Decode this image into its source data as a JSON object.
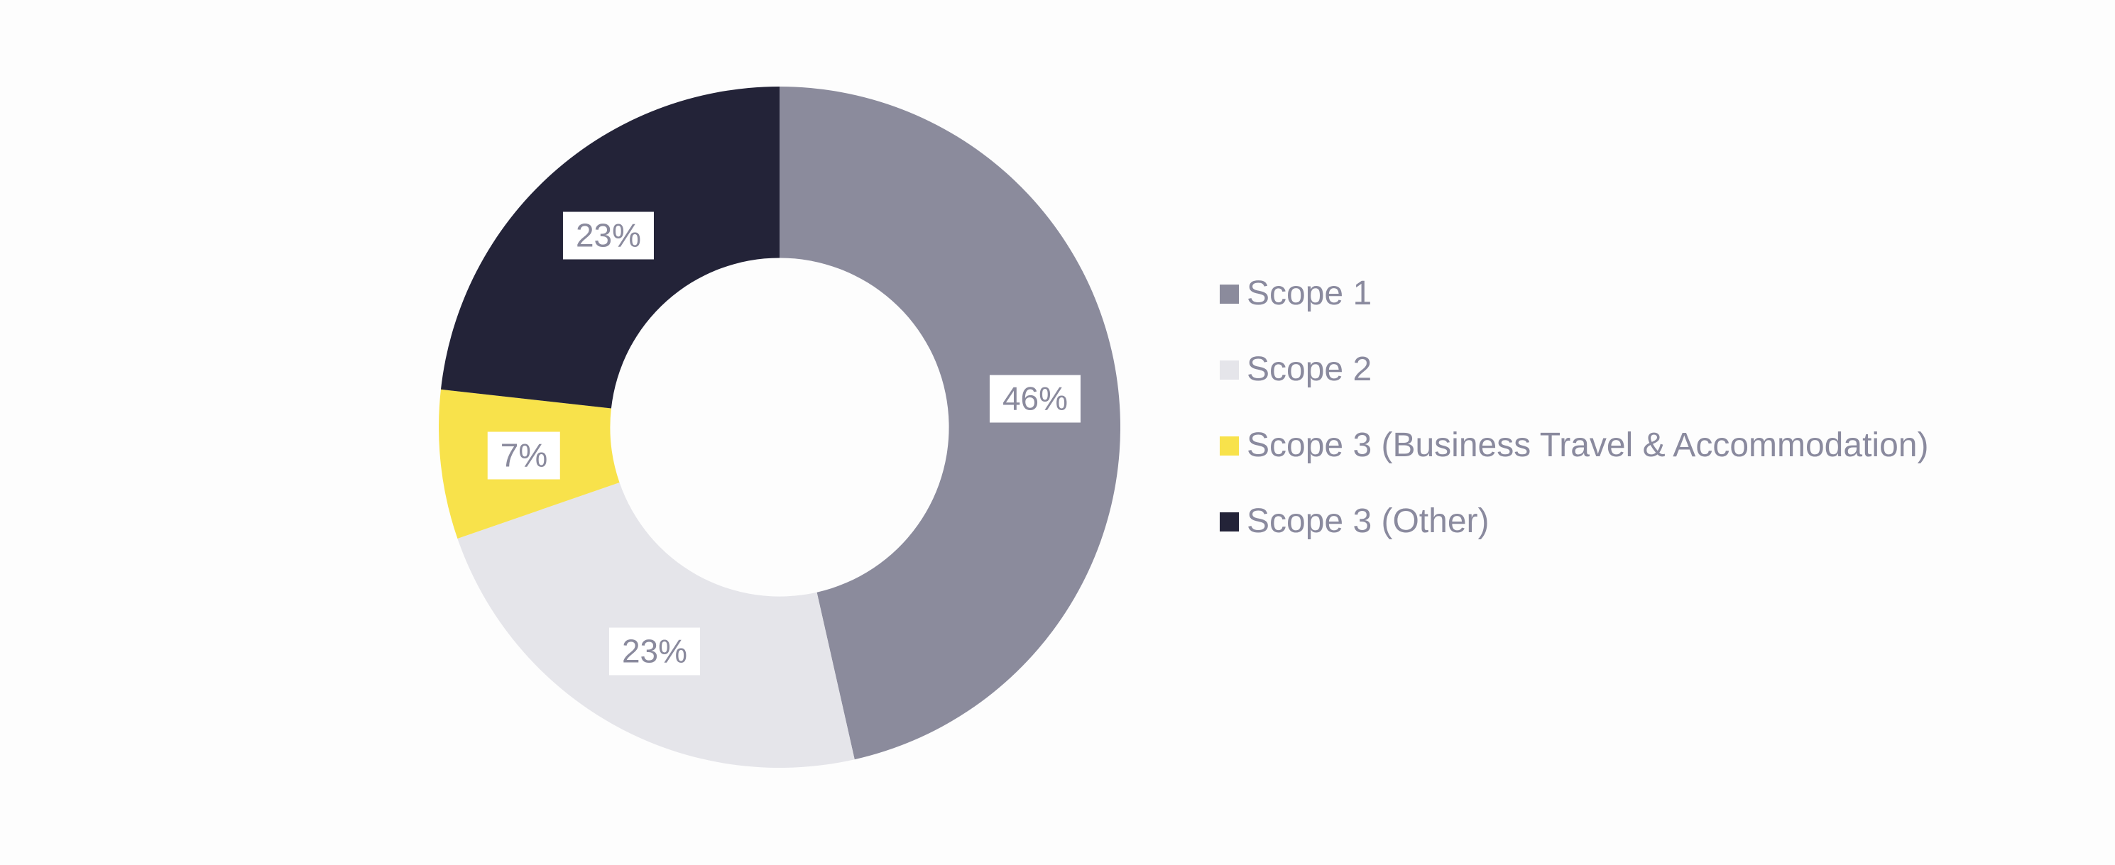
{
  "page": {
    "background": "#FDFDFD"
  },
  "chart_data": {
    "type": "pie",
    "subtype": "donut",
    "legend_position": "right",
    "inner_radius_ratio": 0.497,
    "label_radius_ratio": 0.754,
    "label_bg": "#FFFFFF",
    "label_text_color": "#8A8A9D",
    "legend_text_color": "#8A8A9E",
    "series": [
      {
        "label": "Scope 1",
        "value": 46,
        "display": "46%",
        "color": "#8B8B9C"
      },
      {
        "label": "Scope 2",
        "value": 23,
        "display": "23%",
        "color": "#E5E5EA"
      },
      {
        "label": "Scope 3 (Business Travel & Accommodation)",
        "value": 7,
        "display": "7%",
        "color": "#F8E24B"
      },
      {
        "label": "Scope 3 (Other)",
        "value": 23,
        "display": "23%",
        "color": "#232338"
      }
    ]
  }
}
